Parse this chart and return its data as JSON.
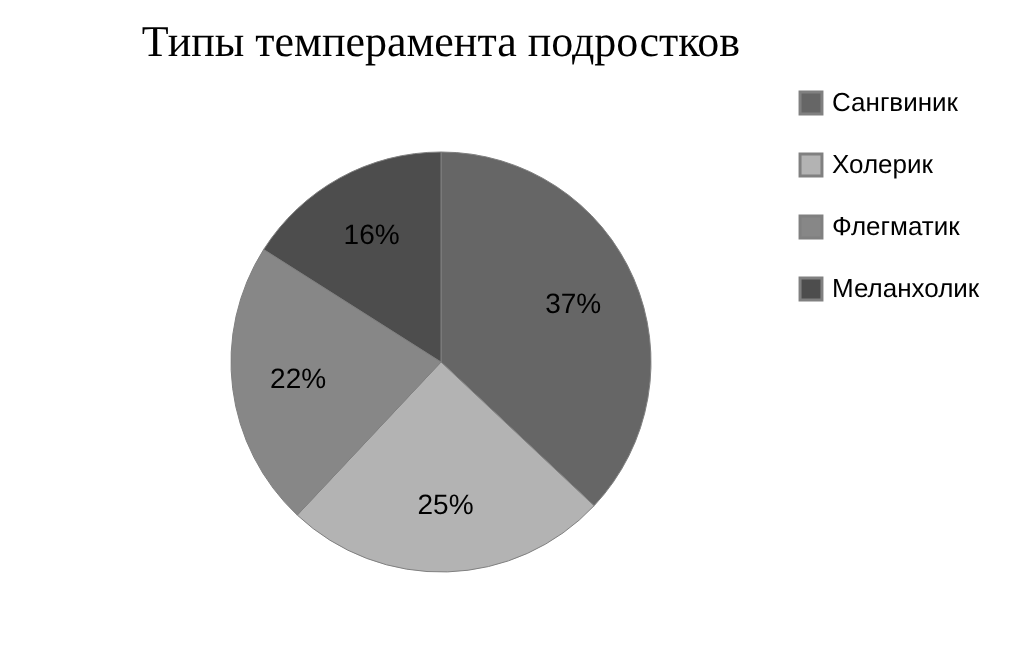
{
  "chart_data": {
    "type": "pie",
    "title": "Типы темперамента подростков",
    "categories": [
      "Сангвиник",
      "Холерик",
      "Флегматик",
      "Меланхолик"
    ],
    "values": [
      37,
      25,
      22,
      16
    ],
    "value_labels": [
      "37%",
      "25%",
      "22%",
      "16%"
    ],
    "colors": [
      "#666666",
      "#b3b3b3",
      "#878787",
      "#4d4d4d"
    ],
    "legend": "right"
  }
}
